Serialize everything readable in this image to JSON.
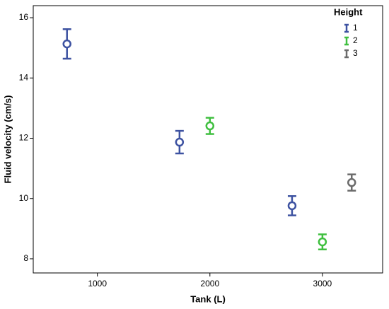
{
  "chart_data": {
    "type": "errorbar",
    "x_label": "Tank (L)",
    "y_label": "Fluid velocity (cm/s)",
    "legend_title": "Height",
    "legend_position": "upper right",
    "xlim": [
      430,
      3535
    ],
    "ylim": [
      7.53,
      16.4
    ],
    "xticks": [
      1000,
      2000,
      3000
    ],
    "yticks": [
      8,
      10,
      12,
      14,
      16
    ],
    "series": [
      {
        "name": "1",
        "color": "#3d52a1",
        "x": [
          730,
          1730,
          2730
        ],
        "values": [
          15.13,
          11.87,
          9.76
        ],
        "errors": [
          0.49,
          0.375,
          0.32
        ]
      },
      {
        "name": "2",
        "color": "#3fbf3f",
        "x": [
          2000,
          3000
        ],
        "values": [
          12.41,
          8.56
        ],
        "errors": [
          0.27,
          0.25
        ]
      },
      {
        "name": "3",
        "color": "#6b6b6b",
        "x": [
          3260
        ],
        "values": [
          10.53
        ],
        "errors": [
          0.27
        ]
      }
    ]
  }
}
